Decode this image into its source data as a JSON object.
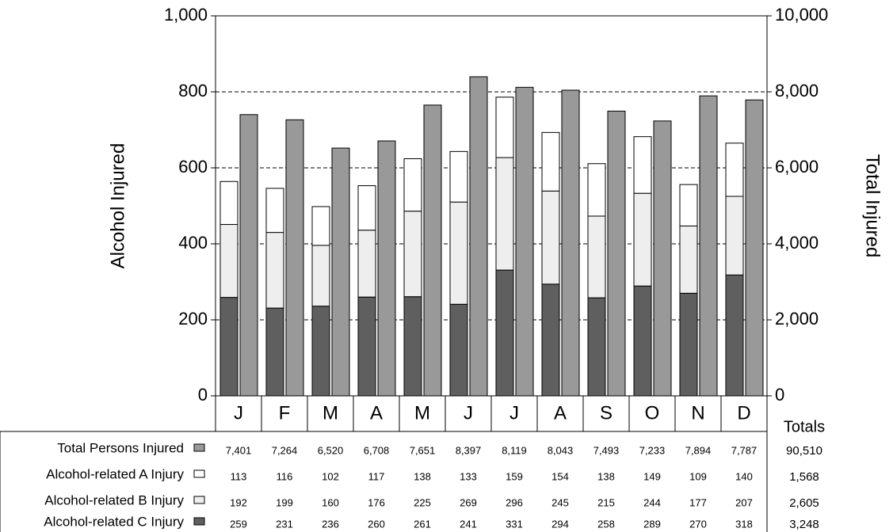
{
  "chart_data": {
    "type": "bar",
    "categories": [
      "J",
      "F",
      "M",
      "A",
      "M",
      "J",
      "J",
      "A",
      "S",
      "O",
      "N",
      "D"
    ],
    "totals_label": "Totals",
    "ylabel": "Alcohol Injured",
    "y2label": "Total Injured",
    "ylim": [
      0,
      1000
    ],
    "yticks": [
      0,
      200,
      400,
      600,
      800,
      {
        "value": 1000,
        "label": "1,000"
      }
    ],
    "y2lim": [
      0,
      10000
    ],
    "y2ticks": [
      0,
      {
        "value": 2000,
        "label": "2,000"
      },
      {
        "value": 4000,
        "label": "4,000"
      },
      {
        "value": 6000,
        "label": "6,000"
      },
      {
        "value": 8000,
        "label": "8,000"
      },
      {
        "value": 10000,
        "label": "10,000"
      }
    ],
    "grid": true,
    "series": [
      {
        "name": "Total Persons Injured",
        "color": "#999999",
        "axis": "y2",
        "values": [
          7401,
          7264,
          6520,
          6708,
          7651,
          8397,
          8119,
          8043,
          7493,
          7233,
          7894,
          7787
        ],
        "value_labels": [
          "7,401",
          "7,264",
          "6,520",
          "6,708",
          "7,651",
          "8,397",
          "8,119",
          "8,043",
          "7,493",
          "7,233",
          "7,894",
          "7,787"
        ],
        "total": {
          "value": 90510,
          "label": "90,510"
        }
      },
      {
        "name": "Alcohol-related A Injury",
        "color": "#ffffff",
        "values": [
          113,
          116,
          102,
          117,
          138,
          133,
          159,
          154,
          138,
          149,
          109,
          140
        ],
        "total": {
          "value": 1568,
          "label": "1,568"
        }
      },
      {
        "name": "Alcohol-related B Injury",
        "color": "#eeeeee",
        "values": [
          192,
          199,
          160,
          176,
          225,
          269,
          296,
          245,
          215,
          244,
          177,
          207
        ],
        "total": {
          "value": 2605,
          "label": "2,605"
        }
      },
      {
        "name": "Alcohol-related C Injury",
        "color": "#5f5f5f",
        "values": [
          259,
          231,
          236,
          260,
          261,
          241,
          331,
          294,
          258,
          289,
          270,
          318
        ],
        "total": {
          "value": 3248,
          "label": "3,248"
        }
      }
    ]
  }
}
